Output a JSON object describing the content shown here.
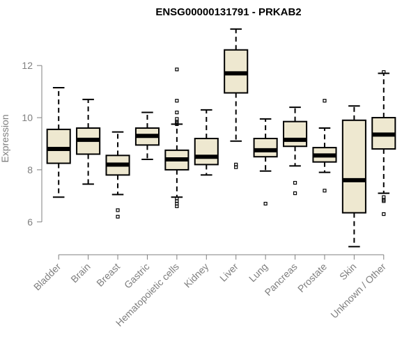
{
  "chart_data": {
    "type": "boxplot",
    "title": "ENSG00000131791 - PRKAB2",
    "xlabel": "",
    "ylabel": "Expression",
    "ylim": [
      4.9,
      13.5
    ],
    "yticks": [
      6,
      8,
      10,
      12
    ],
    "grid": false,
    "box_color": "#EEE8D0",
    "axis_color": "#7f7f7f",
    "categories": [
      "Bladder",
      "Brain",
      "Breast",
      "Gastric",
      "Hematopoietic cells",
      "Kidney",
      "Liver",
      "Lung",
      "Pancreas",
      "Prostate",
      "Skin",
      "Unknown / Other"
    ],
    "boxes": [
      {
        "name": "Bladder",
        "whisker_low": 6.95,
        "q1": 8.25,
        "median": 8.8,
        "q3": 9.55,
        "whisker_high": 11.15,
        "outliers": []
      },
      {
        "name": "Brain",
        "whisker_low": 7.45,
        "q1": 8.6,
        "median": 9.15,
        "q3": 9.6,
        "whisker_high": 10.7,
        "outliers": []
      },
      {
        "name": "Breast",
        "whisker_low": 7.05,
        "q1": 7.8,
        "median": 8.2,
        "q3": 8.55,
        "whisker_high": 9.45,
        "outliers": [
          6.45,
          6.2
        ]
      },
      {
        "name": "Gastric",
        "whisker_low": 8.4,
        "q1": 8.95,
        "median": 9.3,
        "q3": 9.6,
        "whisker_high": 10.2,
        "outliers": []
      },
      {
        "name": "Hematopoietic cells",
        "whisker_low": 6.95,
        "q1": 8.0,
        "median": 8.4,
        "q3": 8.75,
        "whisker_high": 9.75,
        "outliers": [
          11.85,
          10.65,
          10.2,
          9.95,
          9.85,
          9.8,
          9.75,
          6.9,
          6.8,
          6.7,
          6.6
        ]
      },
      {
        "name": "Kidney",
        "whisker_low": 7.8,
        "q1": 8.2,
        "median": 8.5,
        "q3": 9.2,
        "whisker_high": 10.3,
        "outliers": []
      },
      {
        "name": "Liver",
        "whisker_low": 9.1,
        "q1": 10.95,
        "median": 11.7,
        "q3": 12.6,
        "whisker_high": 13.4,
        "outliers": [
          8.2,
          8.1
        ]
      },
      {
        "name": "Lung",
        "whisker_low": 7.95,
        "q1": 8.5,
        "median": 8.75,
        "q3": 9.2,
        "whisker_high": 9.95,
        "outliers": [
          6.7
        ]
      },
      {
        "name": "Pancreas",
        "whisker_low": 8.15,
        "q1": 8.9,
        "median": 9.15,
        "q3": 9.85,
        "whisker_high": 10.4,
        "outliers": [
          7.5,
          7.1
        ]
      },
      {
        "name": "Prostate",
        "whisker_low": 7.9,
        "q1": 8.3,
        "median": 8.55,
        "q3": 8.85,
        "whisker_high": 9.6,
        "outliers": [
          10.65,
          7.2
        ]
      },
      {
        "name": "Skin",
        "whisker_low": 5.05,
        "q1": 6.35,
        "median": 7.6,
        "q3": 9.9,
        "whisker_high": 10.45,
        "outliers": []
      },
      {
        "name": "Unknown / Other",
        "whisker_low": 7.1,
        "q1": 8.8,
        "median": 9.35,
        "q3": 10.0,
        "whisker_high": 11.7,
        "outliers": [
          11.75,
          6.95,
          6.85,
          6.8,
          6.3
        ]
      }
    ]
  }
}
